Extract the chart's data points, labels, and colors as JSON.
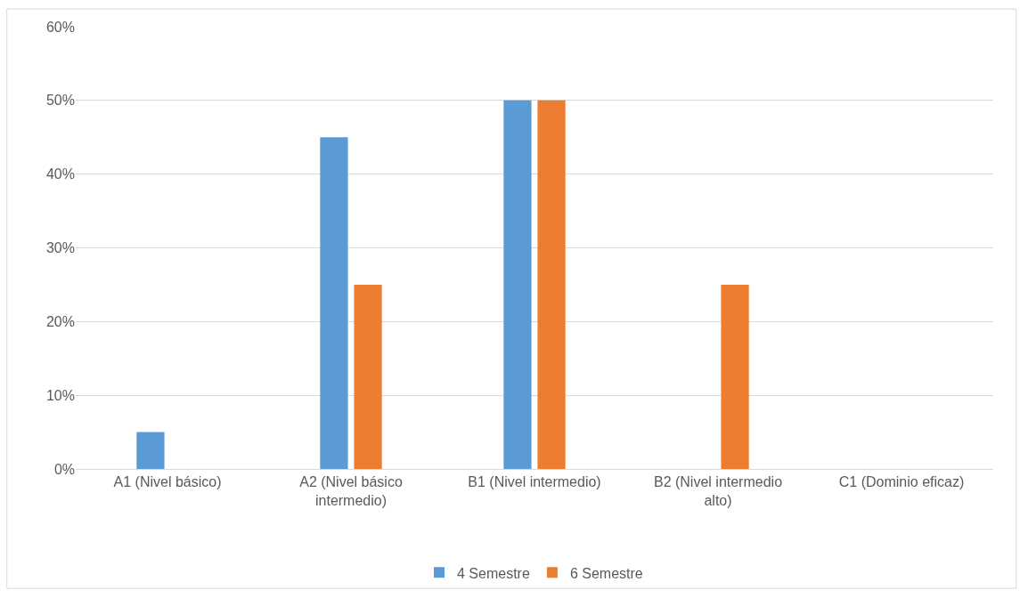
{
  "chart_data": {
    "type": "bar",
    "categories": [
      "A1 (Nivel básico)",
      "A2 (Nivel básico intermedio)",
      "B1 (Nivel intermedio)",
      "B2 (Nivel intermedio alto)",
      "C1 (Dominio eficaz)"
    ],
    "series": [
      {
        "name": "4 Semestre",
        "color": "#5b9bd5",
        "values": [
          5,
          45,
          50,
          0,
          0
        ]
      },
      {
        "name": "6 Semestre",
        "color": "#ed7d31",
        "values": [
          0,
          25,
          50,
          25,
          0
        ]
      }
    ],
    "ylim": [
      0,
      60
    ],
    "yticks": [
      {
        "value": 0,
        "label": "0%"
      },
      {
        "value": 10,
        "label": "10%"
      },
      {
        "value": 20,
        "label": "20%"
      },
      {
        "value": 30,
        "label": "30%"
      },
      {
        "value": 40,
        "label": "40%"
      },
      {
        "value": 50,
        "label": "50%"
      },
      {
        "value": 60,
        "label": "60%"
      }
    ],
    "grid": "y",
    "legend": "bottom"
  }
}
